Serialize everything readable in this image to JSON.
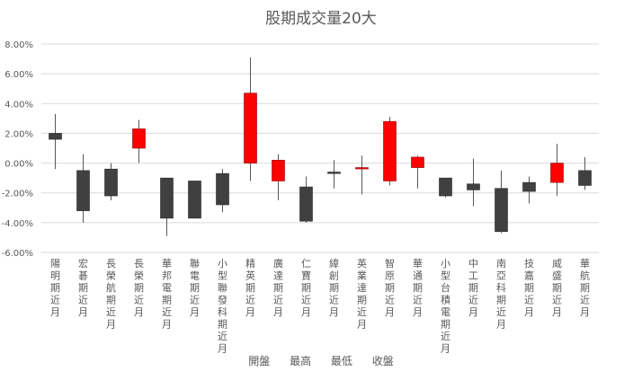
{
  "chart_data": {
    "type": "candlestick",
    "title": "股期成交量20大",
    "ylim": [
      -0.06,
      0.08
    ],
    "yticks": [
      -0.06,
      -0.04,
      -0.02,
      0.0,
      0.02,
      0.04,
      0.06,
      0.08
    ],
    "ytick_labels": [
      "-6.00%",
      "-4.00%",
      "-2.00%",
      "0.00%",
      "2.00%",
      "4.00%",
      "6.00%",
      "8.00%"
    ],
    "legend": [
      "開盤",
      "最高",
      "最低",
      "收盤"
    ],
    "grid": true,
    "up_color": "#ff0000",
    "down_color": "#404040",
    "wick_color": "#595959",
    "categories": [
      "陽明期近月",
      "宏碁期近月",
      "長榮航期近月",
      "長榮期近月",
      "華邦電期近月",
      "聯電期近月",
      "小型聯發科期近月",
      "精英期近月",
      "廣達期近月",
      "仁寶期近月",
      "緯創期近月",
      "英業達期近月",
      "智原期近月",
      "華通期近月",
      "小型台積電期近月",
      "中工期近月",
      "南亞科期近月",
      "技嘉期近月",
      "威盛期近月",
      "華航期近月"
    ],
    "series": [
      {
        "name": "開盤",
        "values": [
          0.02,
          -0.005,
          -0.004,
          0.01,
          -0.01,
          -0.012,
          -0.007,
          0.0,
          -0.012,
          -0.016,
          -0.006,
          -0.003,
          -0.012,
          -0.003,
          -0.01,
          -0.014,
          -0.017,
          -0.013,
          -0.013,
          -0.005
        ]
      },
      {
        "name": "最高",
        "values": [
          0.033,
          0.006,
          0.0,
          0.029,
          -0.01,
          -0.012,
          -0.004,
          0.071,
          0.006,
          -0.009,
          0.002,
          0.005,
          0.031,
          0.005,
          -0.01,
          0.003,
          -0.005,
          -0.009,
          0.013,
          0.004
        ]
      },
      {
        "name": "最低",
        "values": [
          -0.004,
          -0.04,
          -0.025,
          0.0,
          -0.049,
          -0.037,
          -0.033,
          -0.012,
          -0.025,
          -0.04,
          -0.017,
          -0.021,
          -0.015,
          -0.017,
          -0.023,
          -0.029,
          -0.047,
          -0.027,
          -0.022,
          -0.018
        ]
      },
      {
        "name": "收盤",
        "values": [
          0.016,
          -0.032,
          -0.022,
          0.023,
          -0.037,
          -0.037,
          -0.028,
          0.047,
          0.002,
          -0.039,
          -0.007,
          -0.003,
          0.028,
          0.004,
          -0.022,
          -0.018,
          -0.046,
          -0.019,
          0.0,
          -0.015
        ]
      }
    ]
  }
}
